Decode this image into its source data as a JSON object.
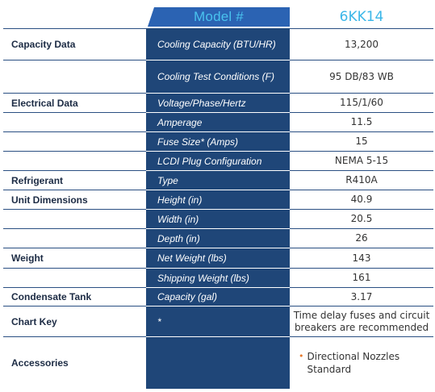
{
  "header": {
    "model_label": "Model #",
    "model_value": "6KK14"
  },
  "rows": [
    {
      "section": "Capacity Data",
      "param": "Cooling Capacity (BTU/HR)",
      "value": "13,200"
    },
    {
      "section": "",
      "param": "Cooling Test Conditions (F)",
      "value": "95 DB/83 WB"
    },
    {
      "section": "Electrical Data",
      "param": "Voltage/Phase/Hertz",
      "value": "115/1/60"
    },
    {
      "section": "",
      "param": "Amperage",
      "value": "11.5"
    },
    {
      "section": "",
      "param": "Fuse Size* (Amps)",
      "value": "15"
    },
    {
      "section": "",
      "param": "LCDI Plug Configuration",
      "value": "NEMA 5-15"
    },
    {
      "section": "Refrigerant",
      "param": "Type",
      "value": "R410A"
    },
    {
      "section": "Unit Dimensions",
      "param": "Height (in)",
      "value": "40.9"
    },
    {
      "section": "",
      "param": "Width (in)",
      "value": "20.5"
    },
    {
      "section": "",
      "param": "Depth (in)",
      "value": "26"
    },
    {
      "section": "Weight",
      "param": "Net Weight (lbs)",
      "value": "143"
    },
    {
      "section": "",
      "param": "Shipping Weight (lbs)",
      "value": "161"
    },
    {
      "section": "Condensate Tank",
      "param": "Capacity (gal)",
      "value": "3.17"
    },
    {
      "section": "Chart Key",
      "param": "*",
      "value": "Time delay fuses and circuit breakers are recommended"
    },
    {
      "section": "Accessories",
      "param": "",
      "value": ""
    }
  ],
  "accessories": {
    "items": [
      "Directional Nozzles Standard"
    ],
    "bullet_color": "#e87a2d"
  },
  "colors": {
    "navy": "#1f4678",
    "header_blue": "#2b63b3",
    "accent_cyan": "#3ab6e8"
  }
}
